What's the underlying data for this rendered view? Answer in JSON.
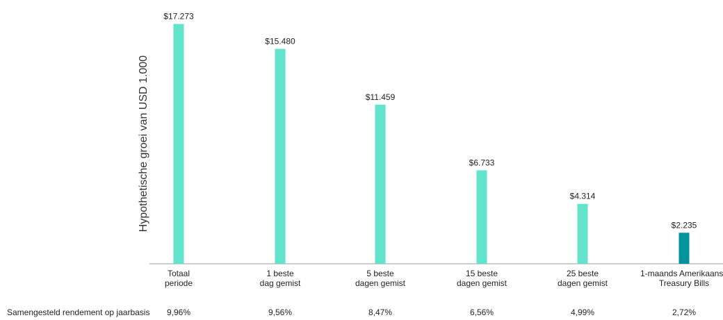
{
  "chart_data": {
    "type": "bar",
    "ylabel": "Hypothetische groei van USD 1.000",
    "categories": [
      [
        "Totaal",
        "periode"
      ],
      [
        "1 beste",
        "dag gemist"
      ],
      [
        "5 beste",
        "dagen gemist"
      ],
      [
        "15 beste",
        "dagen gemist"
      ],
      [
        "25 beste",
        "dagen gemist"
      ],
      [
        "1-maands Amerikaanse",
        "Treasury Bills"
      ]
    ],
    "values": [
      17273,
      15480,
      11459,
      6733,
      4314,
      2235
    ],
    "value_labels": [
      "$17.273",
      "$15.480",
      "$11.459",
      "$6.733",
      "$4.314",
      "$2.235"
    ],
    "bar_colors": [
      "#62e3cc",
      "#62e3cc",
      "#62e3cc",
      "#62e3cc",
      "#62e3cc",
      "#00939a"
    ],
    "ylim": [
      0,
      17800
    ],
    "grid": false,
    "returns_row": {
      "label": "Samengesteld rendement op jaarbasis",
      "values": [
        "9,96%",
        "9,56%",
        "8,47%",
        "6,56%",
        "4,99%",
        "2,72%"
      ]
    }
  },
  "colors": {
    "axis": "#9a9a9a",
    "text": "#222222"
  }
}
